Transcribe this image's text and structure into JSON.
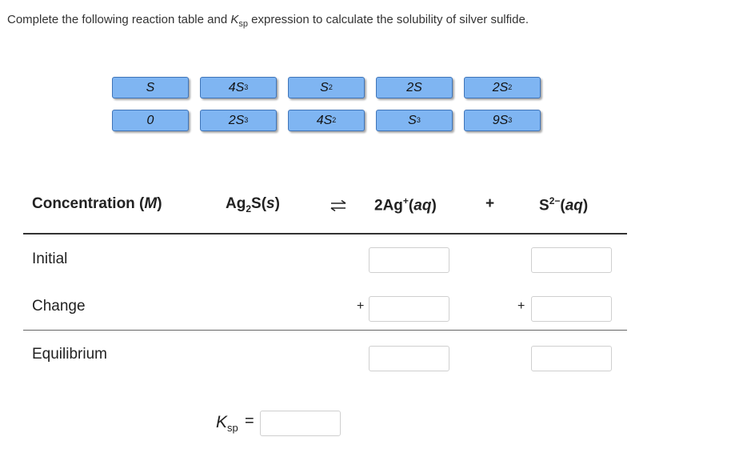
{
  "prompt": {
    "before": "Complete the following reaction table and ",
    "k": "K",
    "sub": "sp",
    "after": " expression to calculate the solubility of silver sulfide."
  },
  "tiles": [
    {
      "base": "S",
      "exp": ""
    },
    {
      "base": "4S",
      "exp": "3"
    },
    {
      "base": "S",
      "exp": "2"
    },
    {
      "base": "2S",
      "exp": ""
    },
    {
      "base": "2S",
      "exp": "2"
    },
    {
      "base": "0",
      "exp": ""
    },
    {
      "base": "2S",
      "exp": "3"
    },
    {
      "base": "4S",
      "exp": "2"
    },
    {
      "base": "S",
      "exp": "3"
    },
    {
      "base": "9S",
      "exp": "3"
    }
  ],
  "header": {
    "concentration": "Concentration (",
    "unit": "M",
    "close": ")",
    "reactant_a": "Ag",
    "reactant_sub": "2",
    "reactant_b": "S(",
    "reactant_state": "s",
    "reactant_close": ")",
    "prod1_a": "2Ag",
    "prod1_sup": "+",
    "prod1_b": "(",
    "prod1_state": "aq",
    "prod1_close": ")",
    "plus": "+",
    "prod2_a": "S",
    "prod2_sup": "2−",
    "prod2_b": "(",
    "prod2_state": "aq",
    "prod2_close": ")"
  },
  "rows": {
    "initial": "Initial",
    "change": "Change",
    "equilibrium": "Equilibrium"
  },
  "change_sign": "+",
  "ksp": {
    "k": "K",
    "sub": "sp",
    "eq": "="
  },
  "inputs": {
    "ag_initial": "",
    "s_initial": "",
    "ag_change": "",
    "s_change": "",
    "ag_equilibrium": "",
    "s_equilibrium": "",
    "ksp_expression": ""
  }
}
